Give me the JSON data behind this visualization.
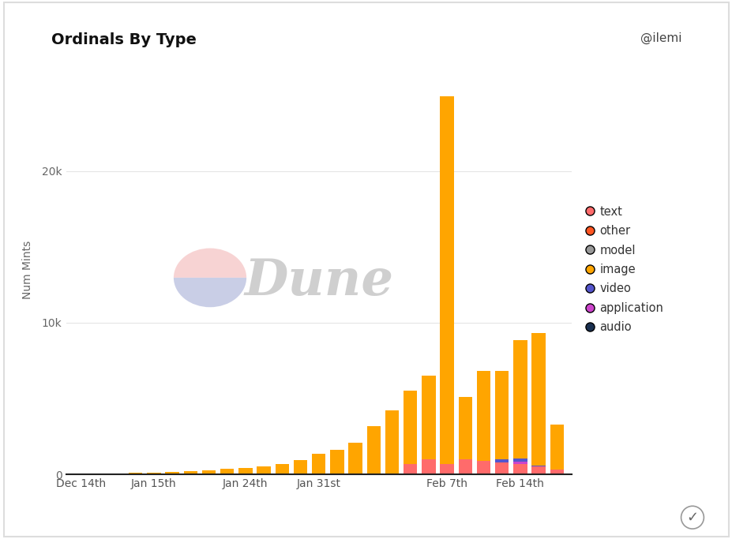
{
  "title": "Ordinals By Type",
  "ylabel": "Num Mints",
  "background_color": "#ffffff",
  "watermark": "Dune",
  "author": "@ilemi",
  "tick_labels": [
    "Dec 14th",
    "Jan 15th",
    "Jan 24th",
    "Jan 31st",
    "Feb 7th",
    "Feb 14th"
  ],
  "yticks": [
    0,
    10000,
    20000
  ],
  "ytick_labels": [
    "0",
    "10k",
    "20k"
  ],
  "ylim": [
    0,
    27000
  ],
  "series_order_bottom_to_top": [
    "text",
    "audio",
    "application",
    "video",
    "model",
    "image",
    "other"
  ],
  "series": {
    "image": {
      "color": "#FFA500"
    },
    "text": {
      "color": "#FF6B6B"
    },
    "video": {
      "color": "#5555CC"
    },
    "application": {
      "color": "#CC44CC"
    },
    "audio": {
      "color": "#1a3050"
    },
    "other": {
      "color": "#FF5522"
    },
    "model": {
      "color": "#999999"
    }
  },
  "bar_data": [
    {
      "image": 50,
      "text": 0,
      "video": 0,
      "application": 0,
      "audio": 0,
      "other": 0,
      "model": 0
    },
    {
      "image": 60,
      "text": 0,
      "video": 0,
      "application": 0,
      "audio": 0,
      "other": 0,
      "model": 0
    },
    {
      "image": 80,
      "text": 0,
      "video": 0,
      "application": 0,
      "audio": 0,
      "other": 0,
      "model": 0
    },
    {
      "image": 100,
      "text": 0,
      "video": 0,
      "application": 0,
      "audio": 0,
      "other": 0,
      "model": 0
    },
    {
      "image": 100,
      "text": 0,
      "video": 0,
      "application": 0,
      "audio": 0,
      "other": 0,
      "model": 0
    },
    {
      "image": 150,
      "text": 0,
      "video": 0,
      "application": 0,
      "audio": 0,
      "other": 0,
      "model": 0
    },
    {
      "image": 200,
      "text": 0,
      "video": 0,
      "application": 0,
      "audio": 0,
      "other": 0,
      "model": 0
    },
    {
      "image": 280,
      "text": 0,
      "video": 0,
      "application": 0,
      "audio": 0,
      "other": 0,
      "model": 0
    },
    {
      "image": 350,
      "text": 0,
      "video": 0,
      "application": 0,
      "audio": 0,
      "other": 0,
      "model": 0
    },
    {
      "image": 400,
      "text": 0,
      "video": 0,
      "application": 0,
      "audio": 0,
      "other": 0,
      "model": 0
    },
    {
      "image": 500,
      "text": 0,
      "video": 0,
      "application": 0,
      "audio": 0,
      "other": 0,
      "model": 0
    },
    {
      "image": 700,
      "text": 0,
      "video": 0,
      "application": 0,
      "audio": 0,
      "other": 0,
      "model": 0
    },
    {
      "image": 950,
      "text": 0,
      "video": 0,
      "application": 0,
      "audio": 0,
      "other": 0,
      "model": 0
    },
    {
      "image": 1300,
      "text": 0,
      "video": 0,
      "application": 0,
      "audio": 0,
      "other": 0,
      "model": 60
    },
    {
      "image": 1600,
      "text": 0,
      "video": 0,
      "application": 0,
      "audio": 0,
      "other": 0,
      "model": 0
    },
    {
      "image": 2100,
      "text": 0,
      "video": 0,
      "application": 0,
      "audio": 0,
      "other": 0,
      "model": 0
    },
    {
      "image": 3200,
      "text": 0,
      "video": 0,
      "application": 0,
      "audio": 0,
      "other": 0,
      "model": 0
    },
    {
      "image": 4200,
      "text": 0,
      "video": 0,
      "application": 0,
      "audio": 0,
      "other": 0,
      "model": 0
    },
    {
      "image": 4800,
      "text": 700,
      "video": 0,
      "application": 0,
      "audio": 0,
      "other": 0,
      "model": 0
    },
    {
      "image": 5500,
      "text": 1000,
      "video": 0,
      "application": 0,
      "audio": 0,
      "other": 0,
      "model": 0
    },
    {
      "image": 24200,
      "text": 700,
      "video": 0,
      "application": 0,
      "audio": 0,
      "other": 0,
      "model": 0
    },
    {
      "image": 4100,
      "text": 1000,
      "video": 0,
      "application": 0,
      "audio": 0,
      "other": 0,
      "model": 0
    },
    {
      "image": 5900,
      "text": 900,
      "video": 0,
      "application": 0,
      "audio": 0,
      "other": 0,
      "model": 0
    },
    {
      "image": 5800,
      "text": 800,
      "video": 200,
      "application": 0,
      "audio": 0,
      "other": 0,
      "model": 0
    },
    {
      "image": 7800,
      "text": 700,
      "video": 200,
      "application": 150,
      "audio": 0,
      "other": 0,
      "model": 0
    },
    {
      "image": 8700,
      "text": 500,
      "video": 100,
      "application": 0,
      "audio": 0,
      "other": 0,
      "model": 0
    },
    {
      "image": 3000,
      "text": 300,
      "video": 0,
      "application": 0,
      "audio": 0,
      "other": 0,
      "model": 0
    }
  ],
  "x_tick_positions": [
    0,
    4,
    9,
    13,
    20,
    24
  ],
  "legend_order": [
    "text",
    "other",
    "model",
    "image",
    "video",
    "application",
    "audio"
  ],
  "title_fontsize": 14,
  "axis_label_fontsize": 10,
  "tick_fontsize": 10,
  "legend_fontsize": 10.5
}
